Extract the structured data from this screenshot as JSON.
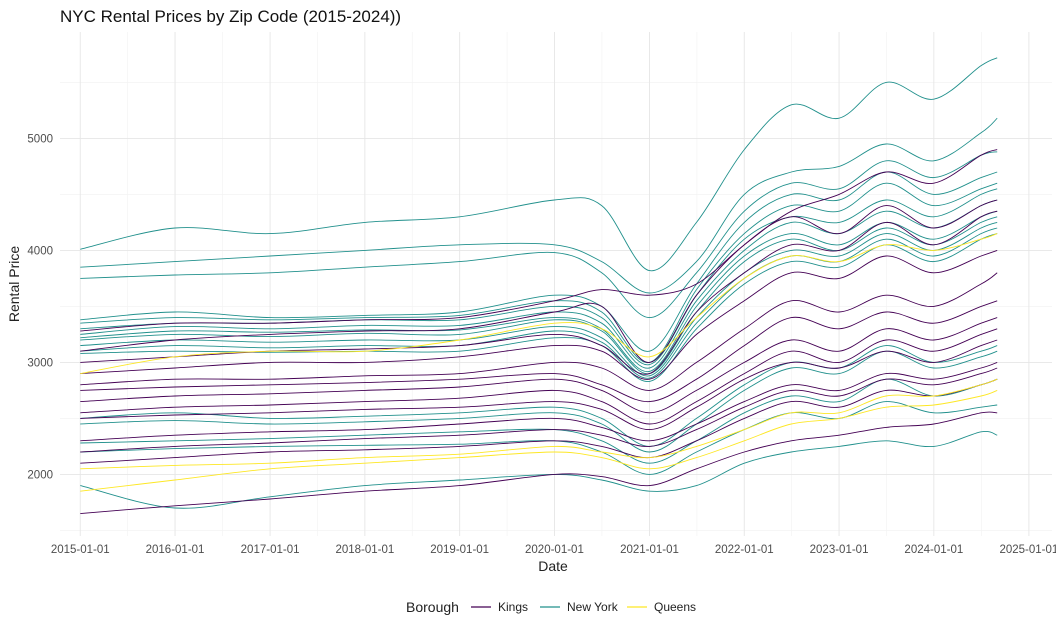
{
  "chart_data": {
    "type": "line",
    "title": "NYC Rental Prices by Zip Code (2015-2024))",
    "xlabel": "Date",
    "ylabel": "Rental Price",
    "x_ticks": [
      "2015-01-01",
      "2016-01-01",
      "2017-01-01",
      "2018-01-01",
      "2019-01-01",
      "2020-01-01",
      "2021-01-01",
      "2022-01-01",
      "2023-01-01",
      "2024-01-01",
      "2025-01-01"
    ],
    "y_ticks": [
      2000,
      3000,
      4000,
      5000
    ],
    "xlim": [
      "2014-10-15",
      "2025-03-31"
    ],
    "ylim": [
      1450,
      5950
    ],
    "grid": true,
    "legend": {
      "title": "Borough",
      "position": "bottom",
      "entries": [
        {
          "name": "Kings",
          "color": "#440154"
        },
        {
          "name": "New York",
          "color": "#21908C"
        },
        {
          "name": "Queens",
          "color": "#FDE725"
        }
      ]
    },
    "x_dates": [
      "2015-01-01",
      "2016-01-01",
      "2017-01-01",
      "2018-01-01",
      "2019-01-01",
      "2020-01-01",
      "2020-07-01",
      "2021-01-01",
      "2021-07-01",
      "2022-01-01",
      "2022-07-01",
      "2023-01-01",
      "2023-07-01",
      "2024-01-01",
      "2024-07-01",
      "2024-09-01"
    ],
    "series": [
      {
        "borough": "New York",
        "values": [
          4010,
          4200,
          4150,
          4250,
          4300,
          4450,
          4400,
          3820,
          4250,
          4900,
          5300,
          5180,
          5500,
          5350,
          5650,
          5720
        ]
      },
      {
        "borough": "New York",
        "values": [
          3850,
          3900,
          3950,
          4000,
          4050,
          4050,
          3900,
          3620,
          3900,
          4500,
          4700,
          4750,
          4950,
          4800,
          5050,
          5180
        ]
      },
      {
        "borough": "New York",
        "values": [
          3750,
          3780,
          3800,
          3850,
          3900,
          3980,
          3800,
          3400,
          3800,
          4350,
          4600,
          4550,
          4800,
          4650,
          4850,
          4880
        ]
      },
      {
        "borough": "New York",
        "values": [
          3380,
          3450,
          3400,
          3420,
          3450,
          3600,
          3500,
          3100,
          3700,
          4250,
          4500,
          4450,
          4700,
          4500,
          4650,
          4700
        ]
      },
      {
        "borough": "New York",
        "values": [
          3350,
          3400,
          3380,
          3400,
          3420,
          3550,
          3450,
          3000,
          3650,
          4150,
          4400,
          4350,
          4600,
          4400,
          4550,
          4600
        ]
      },
      {
        "borough": "New York",
        "values": [
          3300,
          3350,
          3350,
          3380,
          3380,
          3500,
          3400,
          2980,
          3600,
          4100,
          4300,
          4250,
          4450,
          4300,
          4500,
          4550
        ]
      },
      {
        "borough": "New York",
        "values": [
          3250,
          3320,
          3300,
          3330,
          3330,
          3450,
          3350,
          2950,
          3550,
          4000,
          4250,
          4150,
          4350,
          4200,
          4400,
          4450
        ]
      },
      {
        "borough": "New York",
        "values": [
          3220,
          3280,
          3270,
          3290,
          3290,
          3400,
          3300,
          2920,
          3500,
          3950,
          4150,
          4050,
          4250,
          4100,
          4300,
          4350
        ]
      },
      {
        "borough": "New York",
        "values": [
          3200,
          3250,
          3230,
          3260,
          3250,
          3380,
          3280,
          2900,
          3450,
          3900,
          4100,
          4000,
          4200,
          4050,
          4250,
          4300
        ]
      },
      {
        "borough": "New York",
        "values": [
          3150,
          3200,
          3180,
          3200,
          3200,
          3320,
          3220,
          2880,
          3400,
          3800,
          4000,
          3950,
          4150,
          4000,
          4200,
          4250
        ]
      },
      {
        "borough": "New York",
        "values": [
          3100,
          3150,
          3130,
          3150,
          3150,
          3280,
          3180,
          2860,
          3350,
          3750,
          3950,
          3900,
          4100,
          3950,
          4150,
          4200
        ]
      },
      {
        "borough": "New York",
        "values": [
          3080,
          3100,
          3090,
          3100,
          3100,
          3220,
          3150,
          2830,
          3300,
          3700,
          3900,
          3850,
          4050,
          3900,
          4100,
          4150
        ]
      },
      {
        "borough": "New York",
        "values": [
          2500,
          2550,
          2500,
          2520,
          2550,
          2600,
          2500,
          2250,
          2500,
          2800,
          3000,
          2950,
          3150,
          3000,
          3100,
          3150
        ]
      },
      {
        "borough": "New York",
        "values": [
          2450,
          2480,
          2450,
          2470,
          2500,
          2550,
          2450,
          2200,
          2450,
          2750,
          2950,
          2900,
          3100,
          2950,
          3050,
          3100
        ]
      },
      {
        "borough": "New York",
        "values": [
          2280,
          2300,
          2320,
          2350,
          2380,
          2400,
          2300,
          2100,
          2300,
          2550,
          2700,
          2650,
          2850,
          2700,
          2800,
          2850
        ]
      },
      {
        "borough": "New York",
        "values": [
          2200,
          2230,
          2250,
          2260,
          2270,
          2300,
          2200,
          2000,
          2200,
          2400,
          2550,
          2500,
          2650,
          2550,
          2600,
          2620
        ]
      },
      {
        "borough": "New York",
        "values": [
          1900,
          1700,
          1800,
          1900,
          1950,
          2000,
          1950,
          1850,
          1900,
          2100,
          2200,
          2250,
          2300,
          2250,
          2380,
          2350
        ]
      },
      {
        "borough": "Kings",
        "values": [
          3280,
          3350,
          3350,
          3380,
          3400,
          3550,
          3650,
          3600,
          3700,
          4050,
          4350,
          4500,
          4700,
          4600,
          4850,
          4900
        ]
      },
      {
        "borough": "Kings",
        "values": [
          3100,
          3200,
          3250,
          3280,
          3300,
          3450,
          3500,
          3000,
          3600,
          4050,
          4300,
          4150,
          4400,
          4200,
          4400,
          4450
        ]
      },
      {
        "borough": "Kings",
        "values": [
          3000,
          3050,
          3100,
          3120,
          3150,
          3250,
          3150,
          2900,
          3450,
          3800,
          4050,
          4000,
          4250,
          4050,
          4300,
          4350
        ]
      },
      {
        "borough": "Kings",
        "values": [
          2900,
          2950,
          3000,
          3000,
          3050,
          3150,
          3100,
          2850,
          3250,
          3550,
          3800,
          3750,
          3950,
          3800,
          3950,
          4000
        ]
      },
      {
        "borough": "Kings",
        "values": [
          2800,
          2850,
          2850,
          2880,
          2900,
          3000,
          2950,
          2750,
          3000,
          3300,
          3550,
          3450,
          3600,
          3500,
          3700,
          3800
        ]
      },
      {
        "borough": "Kings",
        "values": [
          2750,
          2780,
          2800,
          2820,
          2850,
          2900,
          2800,
          2650,
          2850,
          3150,
          3400,
          3300,
          3450,
          3350,
          3500,
          3550
        ]
      },
      {
        "borough": "Kings",
        "values": [
          2650,
          2700,
          2720,
          2750,
          2780,
          2850,
          2750,
          2550,
          2750,
          3000,
          3200,
          3100,
          3300,
          3200,
          3350,
          3400
        ]
      },
      {
        "borough": "Kings",
        "values": [
          2550,
          2600,
          2620,
          2650,
          2680,
          2750,
          2650,
          2450,
          2650,
          2900,
          3100,
          3000,
          3200,
          3100,
          3250,
          3300
        ]
      },
      {
        "borough": "Kings",
        "values": [
          2500,
          2530,
          2550,
          2580,
          2600,
          2650,
          2580,
          2400,
          2600,
          2850,
          3000,
          2950,
          3100,
          3000,
          3150,
          3200
        ]
      },
      {
        "borough": "Kings",
        "values": [
          2300,
          2350,
          2380,
          2400,
          2450,
          2500,
          2420,
          2300,
          2450,
          2650,
          2800,
          2750,
          2900,
          2850,
          2950,
          3000
        ]
      },
      {
        "borough": "Kings",
        "values": [
          2200,
          2250,
          2280,
          2320,
          2350,
          2400,
          2350,
          2250,
          2400,
          2600,
          2750,
          2700,
          2850,
          2800,
          2900,
          2950
        ]
      },
      {
        "borough": "Kings",
        "values": [
          2100,
          2150,
          2200,
          2220,
          2250,
          2300,
          2250,
          2150,
          2300,
          2500,
          2650,
          2600,
          2750,
          2700,
          2800,
          2850
        ]
      },
      {
        "borough": "Kings",
        "values": [
          1650,
          1720,
          1780,
          1850,
          1900,
          2000,
          1980,
          1900,
          2050,
          2200,
          2300,
          2350,
          2420,
          2450,
          2550,
          2550
        ]
      },
      {
        "borough": "Queens",
        "values": [
          2900,
          3050,
          3100,
          3100,
          3200,
          3350,
          3300,
          3050,
          3400,
          3750,
          3950,
          3900,
          4050,
          4000,
          4100,
          4150
        ]
      },
      {
        "borough": "Queens",
        "values": [
          2050,
          2080,
          2100,
          2150,
          2180,
          2250,
          2200,
          2150,
          2250,
          2400,
          2550,
          2550,
          2700,
          2700,
          2800,
          2850
        ]
      },
      {
        "borough": "Queens",
        "values": [
          1850,
          1950,
          2050,
          2100,
          2150,
          2200,
          2150,
          2050,
          2150,
          2300,
          2450,
          2500,
          2600,
          2620,
          2700,
          2750
        ]
      }
    ]
  }
}
